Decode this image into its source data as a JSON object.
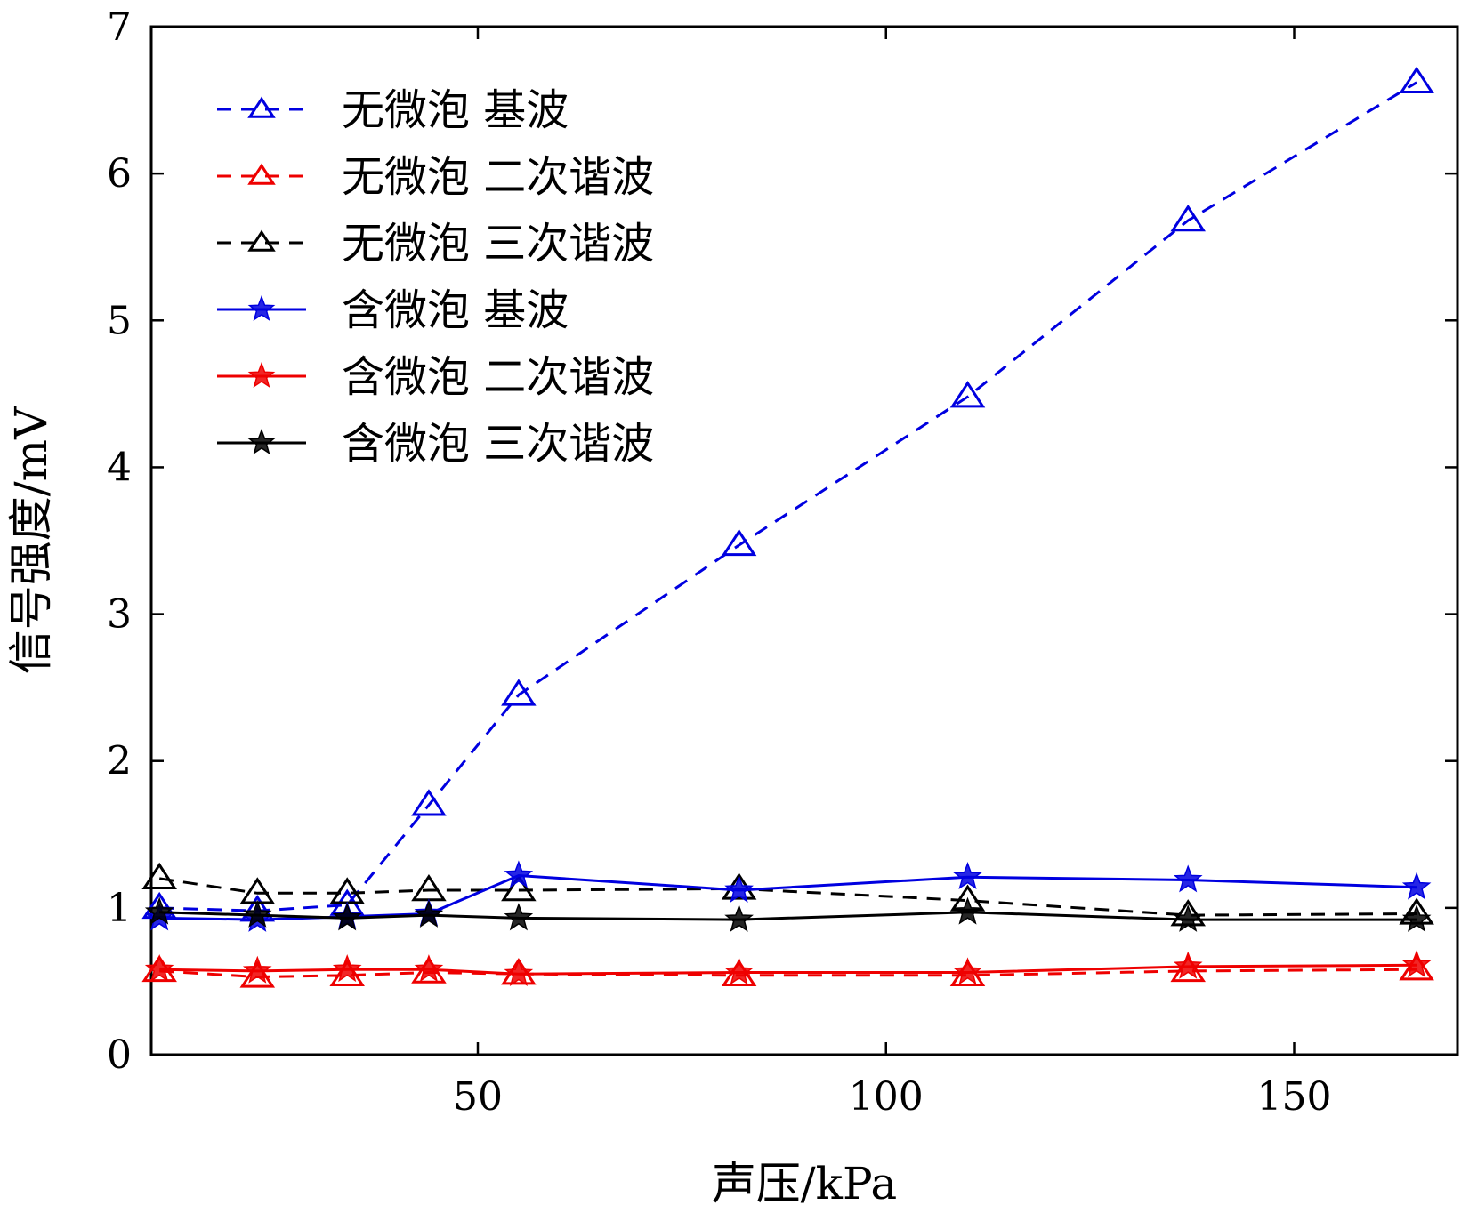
{
  "chart_data": {
    "type": "line",
    "title": "",
    "xlabel": "声压/kPa",
    "ylabel": "信号强度/mV",
    "xlim": [
      10,
      170
    ],
    "ylim": [
      0,
      7
    ],
    "xticks": [
      50,
      100,
      150
    ],
    "yticks": [
      0,
      1,
      2,
      3,
      4,
      5,
      6,
      7
    ],
    "grid": false,
    "legend_position": "top-left",
    "x": [
      11,
      23,
      34,
      44,
      55,
      82,
      110,
      137,
      165
    ],
    "series": [
      {
        "name": "无微泡 基波",
        "color": "#0000e0",
        "line": "dashed",
        "marker": "triangle",
        "values": [
          1.0,
          0.98,
          1.02,
          1.7,
          2.45,
          3.47,
          4.48,
          5.68,
          6.62
        ]
      },
      {
        "name": "无微泡 二次谐波",
        "color": "#ee0000",
        "line": "dashed",
        "marker": "triangle",
        "values": [
          0.57,
          0.53,
          0.54,
          0.56,
          0.55,
          0.54,
          0.54,
          0.57,
          0.58
        ]
      },
      {
        "name": "无微泡 三次谐波",
        "color": "#000000",
        "line": "dashed",
        "marker": "triangle",
        "values": [
          1.2,
          1.1,
          1.1,
          1.12,
          1.12,
          1.13,
          1.05,
          0.95,
          0.96
        ]
      },
      {
        "name": "含微泡 基波",
        "color": "#0000e0",
        "line": "solid",
        "marker": "star",
        "values": [
          0.93,
          0.92,
          0.94,
          0.96,
          1.22,
          1.12,
          1.21,
          1.19,
          1.14
        ]
      },
      {
        "name": "含微泡 二次谐波",
        "color": "#ee0000",
        "line": "solid",
        "marker": "star",
        "values": [
          0.58,
          0.57,
          0.58,
          0.58,
          0.55,
          0.56,
          0.56,
          0.6,
          0.61
        ]
      },
      {
        "name": "含微泡 三次谐波",
        "color": "#000000",
        "line": "solid",
        "marker": "star",
        "values": [
          0.97,
          0.95,
          0.93,
          0.95,
          0.93,
          0.92,
          0.97,
          0.92,
          0.92
        ]
      }
    ]
  }
}
